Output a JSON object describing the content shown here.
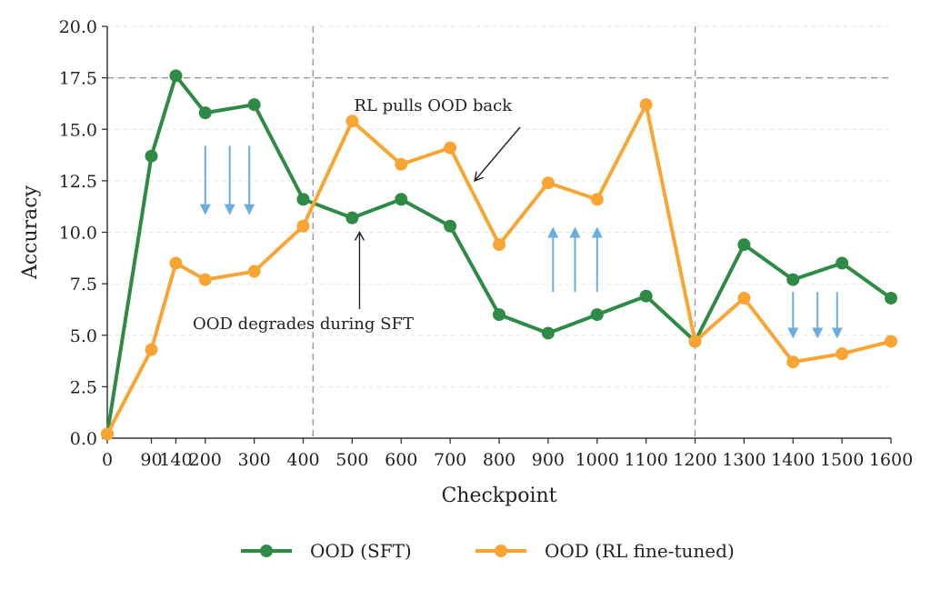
{
  "chart_data": {
    "type": "line",
    "xlabel": "Checkpoint",
    "ylabel": "Accuracy",
    "x": [
      0,
      90,
      140,
      200,
      300,
      400,
      500,
      600,
      700,
      800,
      900,
      1000,
      1100,
      1200,
      1300,
      1400,
      1500,
      1600
    ],
    "x_tick_labels": [
      "0",
      "90",
      "140",
      "200",
      "300",
      "400",
      "500",
      "600",
      "700",
      "800",
      "900",
      "1000",
      "1100",
      "1200",
      "1300",
      "1400",
      "1500",
      "1600"
    ],
    "ylim": [
      0,
      20
    ],
    "y_ticks": [
      0.0,
      2.5,
      5.0,
      7.5,
      10.0,
      12.5,
      15.0,
      17.5,
      20.0
    ],
    "y_tick_labels": [
      "0.0",
      "2.5",
      "5.0",
      "7.5",
      "10.0",
      "12.5",
      "15.0",
      "17.5",
      "20.0"
    ],
    "grid": "horizontal dashed",
    "legend_position": "bottom-center",
    "series": [
      {
        "name": "OOD (SFT)",
        "color": "#2e8b45",
        "values": [
          0.2,
          13.7,
          17.6,
          15.8,
          16.2,
          11.6,
          10.7,
          11.6,
          10.3,
          6.0,
          5.1,
          6.0,
          6.9,
          4.7,
          9.4,
          7.7,
          8.5,
          6.8
        ]
      },
      {
        "name": "OOD (RL fine-tuned)",
        "color": "#f9a533",
        "values": [
          0.2,
          4.3,
          8.5,
          7.7,
          8.1,
          10.3,
          15.4,
          13.3,
          14.1,
          9.4,
          12.4,
          11.6,
          16.2,
          4.7,
          6.8,
          3.7,
          4.1,
          4.7
        ]
      }
    ],
    "reference_lines": {
      "horizontal_y": 17.5,
      "vertical_x": [
        420,
        1200
      ],
      "color": "#999999"
    },
    "annotations": [
      {
        "text": "OOD degrades during SFT",
        "text_x": 400,
        "text_y": 5.3,
        "arrow_to_x": 515,
        "arrow_to_y": 10.0
      },
      {
        "text": "RL pulls OOD back",
        "text_x": 665,
        "text_y": 15.9,
        "arrow_to_x": 750,
        "arrow_to_y": 12.5
      }
    ],
    "trend_arrows": {
      "color": "#6aaee0",
      "groups": [
        {
          "direction": "down",
          "x": [
            200,
            250,
            290
          ],
          "y_from": 14.2,
          "y_to": 11.1
        },
        {
          "direction": "up",
          "x": [
            910,
            955,
            1000
          ],
          "y_from": 7.1,
          "y_to": 10.0
        },
        {
          "direction": "down",
          "x": [
            1400,
            1450,
            1490
          ],
          "y_from": 7.1,
          "y_to": 5.1
        }
      ]
    }
  }
}
